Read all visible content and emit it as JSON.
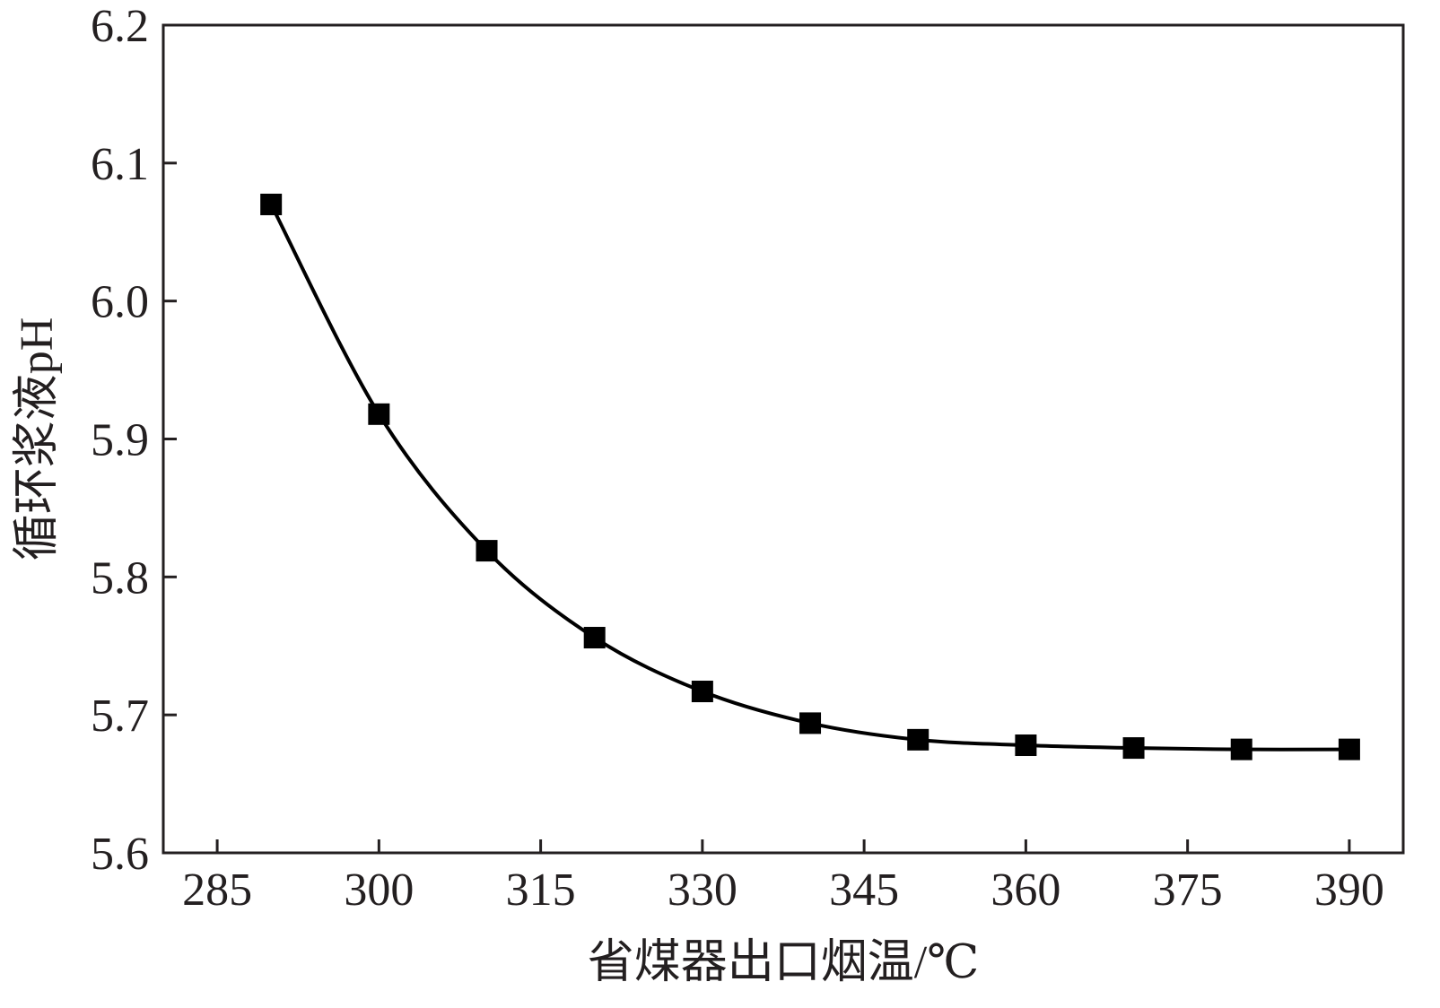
{
  "chart_data": {
    "type": "line",
    "title": "",
    "xlabel": "省煤器出口烟温/℃",
    "ylabel": "循环浆液pH",
    "xlim": [
      280,
      395
    ],
    "ylim": [
      5.6,
      6.2
    ],
    "xticks": [
      285,
      300,
      315,
      330,
      345,
      360,
      375,
      390
    ],
    "yticks": [
      5.6,
      5.7,
      5.8,
      5.9,
      6.0,
      6.1,
      6.2
    ],
    "x_tick_labels": [
      "285",
      "300",
      "315",
      "330",
      "345",
      "360",
      "375",
      "390"
    ],
    "y_tick_labels": [
      "5.6",
      "5.7",
      "5.8",
      "5.9",
      "6.0",
      "6.1",
      "6.2"
    ],
    "grid": false,
    "legend": "none",
    "marker": "square",
    "color": "#000000",
    "series": [
      {
        "x": [
          290,
          300,
          310,
          320,
          330,
          340,
          350,
          360,
          370,
          380,
          390
        ],
        "y": [
          6.07,
          5.918,
          5.819,
          5.756,
          5.717,
          5.694,
          5.682,
          5.678,
          5.676,
          5.675,
          5.675
        ]
      }
    ]
  }
}
